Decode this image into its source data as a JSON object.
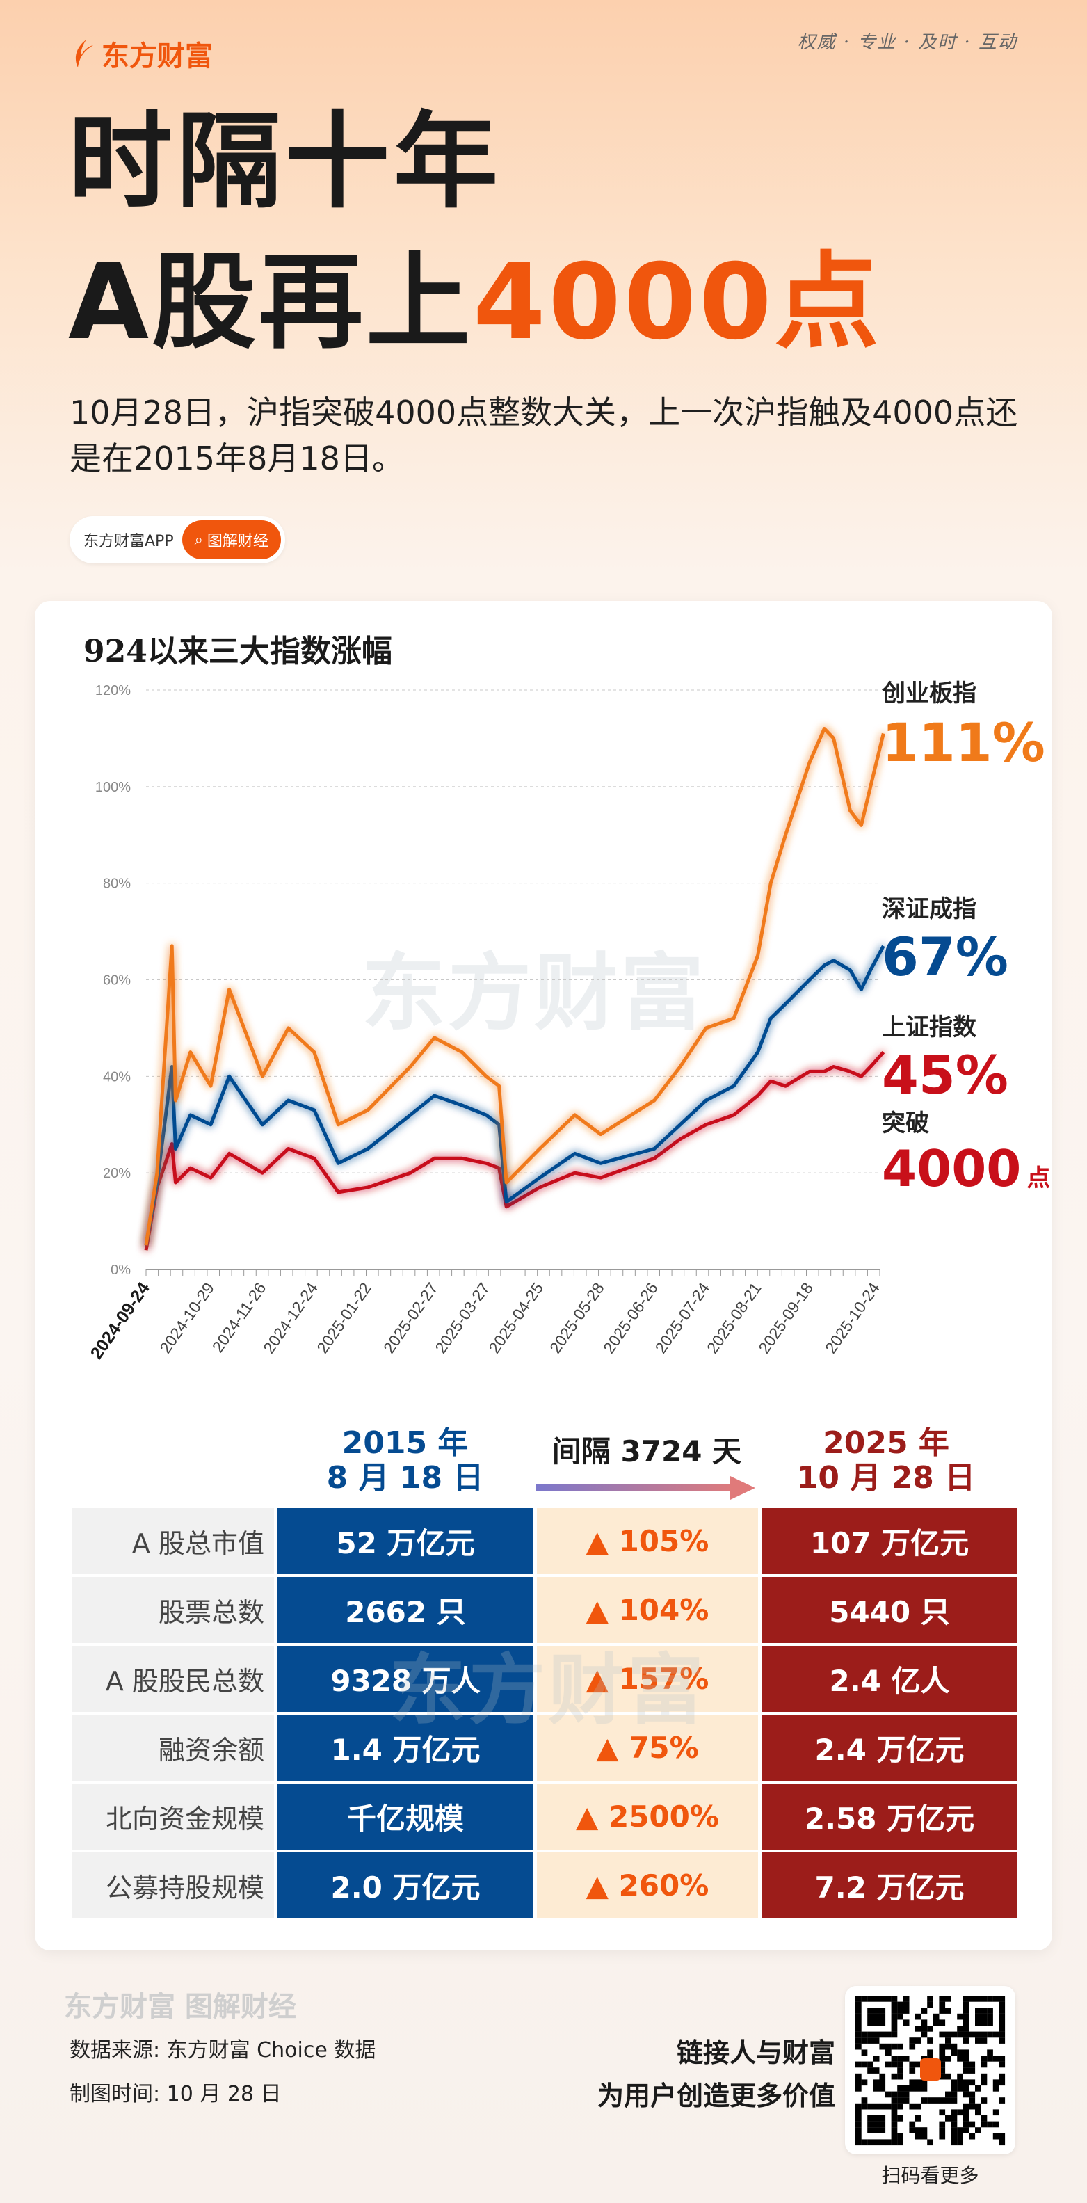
{
  "header": {
    "brand": "东方财富",
    "slogan": "权威 · 专业 · 及时 · 互动",
    "title_line1": "时隔十年",
    "title_line2_prefix": "A股再上",
    "title_line2_highlight": "4000点",
    "subtitle": "10月28日，沪指突破4000点整数大关，上一次沪指触及4000点还是在2015年8月18日。",
    "tag_app": "东方财富APP",
    "tag_column": "图解财经"
  },
  "colors": {
    "brand": "#f0560d",
    "chinext": "#f07a1a",
    "shenzhen": "#054b91",
    "shanghai": "#c8101a",
    "blue_col": "#054b91",
    "red_col": "#9c1d1a"
  },
  "chart_data": {
    "type": "line",
    "title": "924以来三大指数涨幅",
    "ylim": [
      0,
      120
    ],
    "yticks": [
      "0%",
      "20%",
      "40%",
      "60%",
      "80%",
      "100%",
      "120%"
    ],
    "grid": "horizontal dashed",
    "xticks": [
      "2024-09-24",
      "2024-10-29",
      "2024-11-26",
      "2024-12-24",
      "2025-01-22",
      "2025-02-27",
      "2025-03-27",
      "2025-04-25",
      "2025-05-28",
      "2025-06-26",
      "2025-07-24",
      "2025-08-21",
      "2025-09-18",
      "2025-10-24"
    ],
    "x": [
      "2024-09-24",
      "2024-09-30",
      "2024-10-08",
      "2024-10-10",
      "2024-10-18",
      "2024-10-29",
      "2024-11-08",
      "2024-11-26",
      "2024-12-10",
      "2024-12-24",
      "2025-01-06",
      "2025-01-22",
      "2025-02-14",
      "2025-02-27",
      "2025-03-14",
      "2025-03-27",
      "2025-04-03",
      "2025-04-07",
      "2025-04-25",
      "2025-05-14",
      "2025-05-28",
      "2025-06-26",
      "2025-07-10",
      "2025-07-24",
      "2025-08-08",
      "2025-08-21",
      "2025-08-28",
      "2025-09-05",
      "2025-09-18",
      "2025-09-26",
      "2025-10-01",
      "2025-10-10",
      "2025-10-16",
      "2025-10-21",
      "2025-10-28"
    ],
    "series": [
      {
        "name": "创业板指",
        "end_label": "111%",
        "values": [
          5,
          20,
          67,
          35,
          45,
          38,
          58,
          40,
          50,
          45,
          30,
          33,
          42,
          48,
          45,
          40,
          38,
          18,
          25,
          32,
          28,
          35,
          42,
          50,
          52,
          65,
          80,
          90,
          105,
          112,
          110,
          95,
          92,
          100,
          111
        ]
      },
      {
        "name": "深证成指",
        "end_label": "67%",
        "values": [
          5,
          18,
          42,
          25,
          32,
          30,
          40,
          30,
          35,
          33,
          22,
          25,
          32,
          36,
          34,
          32,
          30,
          14,
          19,
          24,
          22,
          25,
          30,
          35,
          38,
          45,
          52,
          55,
          60,
          63,
          64,
          62,
          58,
          62,
          67
        ]
      },
      {
        "name": "上证指数",
        "end_label": "45%",
        "values": [
          4,
          17,
          26,
          18,
          21,
          19,
          24,
          20,
          25,
          23,
          16,
          17,
          20,
          23,
          23,
          22,
          21,
          13,
          17,
          20,
          19,
          23,
          27,
          30,
          32,
          36,
          39,
          38,
          41,
          41,
          42,
          41,
          40,
          42,
          45
        ]
      }
    ],
    "annotation": {
      "prefix": "突破",
      "value": "4000",
      "unit": "点"
    },
    "watermark": "东方财富"
  },
  "comparison": {
    "left_header": [
      "2015 年",
      "8 月 18 日"
    ],
    "right_header": [
      "2025 年",
      "10 月 28 日"
    ],
    "gap_label": "间隔 3724 天",
    "rows": [
      {
        "label": "A 股总市值",
        "v2015": "52 万亿元",
        "change": "▲ 105%",
        "v2025": "107 万亿元"
      },
      {
        "label": "股票总数",
        "v2015": "2662 只",
        "change": "▲ 104%",
        "v2025": "5440 只"
      },
      {
        "label": "A 股股民总数",
        "v2015": "9328 万人",
        "change": "▲ 157%",
        "v2025": "2.4 亿人"
      },
      {
        "label": "融资余额",
        "v2015": "1.4 万亿元",
        "change": "▲ 75%",
        "v2025": "2.4 万亿元"
      },
      {
        "label": "北向资金规模",
        "v2015": "千亿规模",
        "change": "▲ 2500%",
        "v2025": "2.58 万亿元"
      },
      {
        "label": "公募持股规模",
        "v2015": "2.0 万亿元",
        "change": "▲ 260%",
        "v2025": "7.2 万亿元"
      }
    ]
  },
  "footer": {
    "brand_watermark": "东方财富 图解财经",
    "source": "数据来源: 东方财富 Choice 数据",
    "time": "制图时间: 10 月 28 日",
    "slogan1": "链接人与财富",
    "slogan2": "为用户创造更多价值",
    "qr_caption": "扫码看更多"
  }
}
